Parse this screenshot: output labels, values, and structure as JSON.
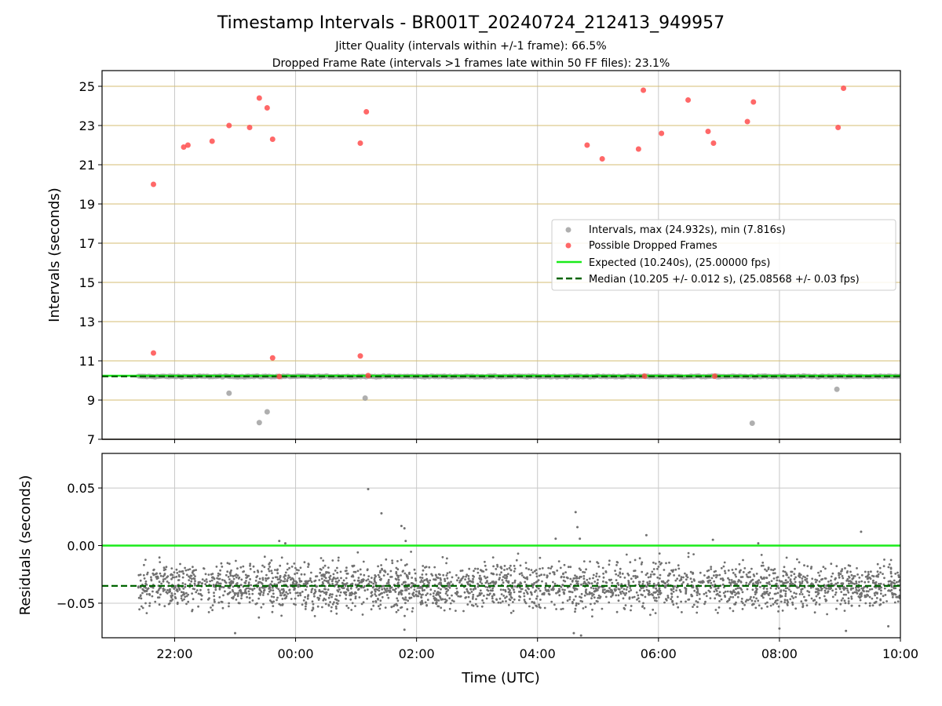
{
  "figure": {
    "title": "Timestamp Intervals - BR001T_20240724_212413_949957",
    "subtitle_1": "Jitter Quality (intervals within +/-1 frame): 66.5%",
    "subtitle_2": "Dropped Frame Rate (intervals >1 frames late within 50 FF files): 23.1%"
  },
  "colors": {
    "intervals": "#9b9b9b",
    "dropped": "#ff4d4d",
    "expected": "#1aeb1a",
    "median": "#006400",
    "residuals": "#707070",
    "hgrid_top": "#d4bd73",
    "vgrid": "#c8c8c8"
  },
  "chart_data": [
    {
      "type": "scatter",
      "panel": "top",
      "ylabel": "Intervals (seconds)",
      "xlabel": "",
      "ylim": [
        7,
        25.8
      ],
      "xlim_hours": [
        -3.2,
        10
      ],
      "yticks": [
        7,
        9,
        11,
        13,
        15,
        17,
        19,
        21,
        23,
        25
      ],
      "xticks": [
        {
          "h": -2,
          "label": "22:00"
        },
        {
          "h": 0,
          "label": "00:00"
        },
        {
          "h": 2,
          "label": "02:00"
        },
        {
          "h": 4,
          "label": "04:00"
        },
        {
          "h": 6,
          "label": "06:00"
        },
        {
          "h": 8,
          "label": "08:00"
        },
        {
          "h": 10,
          "label": "10:00"
        }
      ],
      "grid": true,
      "legend_position": "center-right",
      "legend": {
        "intervals": "Intervals, max (24.932s), min (7.816s)",
        "dropped": "Possible Dropped Frames",
        "expected": "Expected (10.240s), (25.00000 fps)",
        "median": "Median (10.205 +/- 0.012 s), (25.08568 +/- 0.03 fps)"
      },
      "expected": 10.24,
      "median": 10.205,
      "series_band": {
        "name": "Intervals",
        "x_range_hours": [
          -2.6,
          10
        ],
        "center": 10.205,
        "spread": 0.05
      },
      "gray_outliers": [
        [
          -1.1,
          9.35
        ],
        [
          -0.6,
          7.85
        ],
        [
          -0.47,
          8.4
        ],
        [
          1.15,
          9.1
        ],
        [
          7.55,
          7.82
        ],
        [
          8.95,
          9.55
        ]
      ],
      "dropped_frames": [
        [
          -2.35,
          20.0
        ],
        [
          -2.35,
          11.4
        ],
        [
          -1.85,
          21.9
        ],
        [
          -1.78,
          22.0
        ],
        [
          -1.38,
          22.2
        ],
        [
          -1.1,
          23.0
        ],
        [
          -0.76,
          22.9
        ],
        [
          -0.6,
          24.4
        ],
        [
          -0.47,
          23.9
        ],
        [
          -0.38,
          22.3
        ],
        [
          -0.38,
          11.15
        ],
        [
          -0.27,
          10.2
        ],
        [
          1.07,
          22.1
        ],
        [
          1.07,
          11.25
        ],
        [
          1.17,
          23.7
        ],
        [
          1.2,
          10.25
        ],
        [
          4.82,
          22.0
        ],
        [
          5.07,
          21.3
        ],
        [
          5.67,
          21.8
        ],
        [
          5.75,
          24.8
        ],
        [
          5.77,
          10.22
        ],
        [
          6.05,
          22.6
        ],
        [
          6.49,
          24.3
        ],
        [
          6.82,
          22.7
        ],
        [
          6.91,
          22.1
        ],
        [
          6.93,
          10.22
        ],
        [
          7.47,
          23.2
        ],
        [
          7.57,
          24.2
        ],
        [
          8.97,
          22.9
        ],
        [
          9.06,
          24.9
        ]
      ]
    },
    {
      "type": "scatter",
      "panel": "bottom",
      "ylabel": "Residuals (seconds)",
      "xlabel": "Time (UTC)",
      "ylim": [
        -0.08,
        0.08
      ],
      "xlim_hours": [
        -3.2,
        10
      ],
      "yticks": [
        0.05,
        0.0,
        -0.05
      ],
      "ytick_labels": [
        "0.05",
        "0.00",
        "−0.05"
      ],
      "grid": true,
      "expected": 0.0,
      "median": -0.035,
      "series_band": {
        "name": "Residuals",
        "x_range_hours": [
          -2.6,
          10
        ],
        "center": -0.035,
        "spread": 0.014
      },
      "outliers": [
        [
          1.2,
          0.049
        ],
        [
          1.42,
          0.028
        ],
        [
          1.75,
          0.017
        ],
        [
          1.8,
          0.015
        ],
        [
          1.82,
          0.004
        ],
        [
          -0.27,
          0.004
        ],
        [
          -0.17,
          0.002
        ],
        [
          4.3,
          0.006
        ],
        [
          4.63,
          0.029
        ],
        [
          4.66,
          0.016
        ],
        [
          4.7,
          0.006
        ],
        [
          5.8,
          0.009
        ],
        [
          6.9,
          0.005
        ],
        [
          7.65,
          0.002
        ],
        [
          9.35,
          0.012
        ],
        [
          4.6,
          -0.076
        ],
        [
          4.72,
          -0.078
        ],
        [
          -1.0,
          -0.076
        ],
        [
          1.8,
          -0.073
        ],
        [
          8.0,
          -0.072
        ],
        [
          9.1,
          -0.074
        ],
        [
          9.8,
          -0.07
        ]
      ]
    }
  ]
}
